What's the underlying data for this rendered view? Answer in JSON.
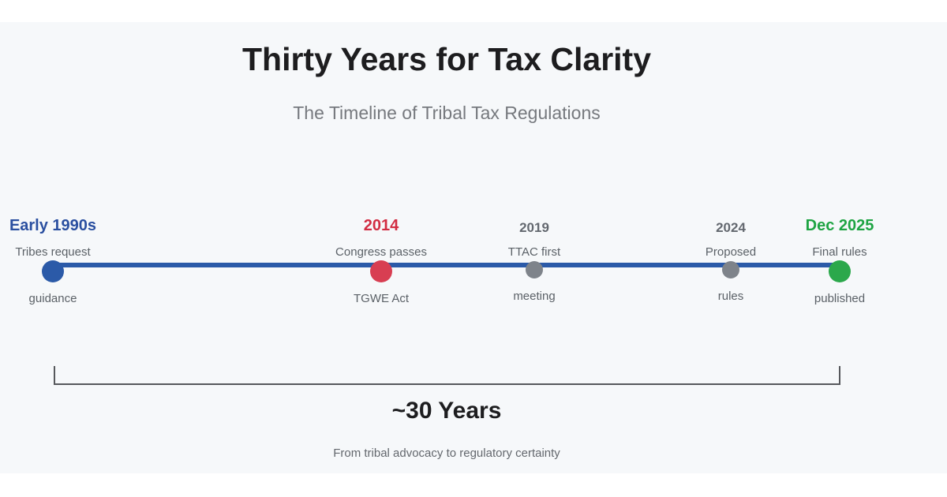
{
  "header": {
    "title": "Thirty Years for Tax Clarity",
    "subtitle": "The Timeline of Tribal Tax Regulations"
  },
  "chart_data": {
    "type": "timeline",
    "title": "Thirty Years for Tax Clarity",
    "subtitle": "The Timeline of Tribal Tax Regulations",
    "events": [
      {
        "when": "Early 1990s",
        "what": "Tribes request guidance"
      },
      {
        "when": "2014",
        "what": "Congress passes TGWE Act"
      },
      {
        "when": "2019",
        "what": "TTAC first meeting"
      },
      {
        "when": "2024",
        "what": "Proposed rules"
      },
      {
        "when": "Dec 2025",
        "what": "Final rules published"
      }
    ],
    "span_label": "~30 Years",
    "span_caption": "From tribal advocacy to regulatory certainty"
  },
  "timeline": {
    "line_color": "#2b5aa8",
    "milestones": [
      {
        "year": "Early 1990s",
        "label_top": "Tribes request",
        "label_bottom": "guidance",
        "color": "#2a4fa0",
        "dot_color": "#2b5aa8",
        "emphasis": "major"
      },
      {
        "year": "2014",
        "label_top": "Congress passes",
        "label_bottom": "TGWE Act",
        "color": "#d22c42",
        "dot_color": "#d83e52",
        "emphasis": "major"
      },
      {
        "year": "2019",
        "label_top": "TTAC first",
        "label_bottom": "meeting",
        "color": "#63686f",
        "dot_color": "#7e838a",
        "emphasis": "minor"
      },
      {
        "year": "2024",
        "label_top": "Proposed",
        "label_bottom": "rules",
        "color": "#63686f",
        "dot_color": "#7e838a",
        "emphasis": "minor"
      },
      {
        "year": "Dec 2025",
        "label_top": "Final rules",
        "label_bottom": "published",
        "color": "#1ea443",
        "dot_color": "#2ba84b",
        "emphasis": "major"
      }
    ]
  },
  "summary": {
    "duration": "~30 Years",
    "caption": "From tribal advocacy to regulatory certainty"
  },
  "colors": {
    "page_background": "#ffffff",
    "panel_background": "#f6f8fa",
    "timeline_blue": "#2b5aa8",
    "bracket_gray": "#56585c",
    "text_primary": "#1d1d1f",
    "text_muted": "#5b6167"
  }
}
